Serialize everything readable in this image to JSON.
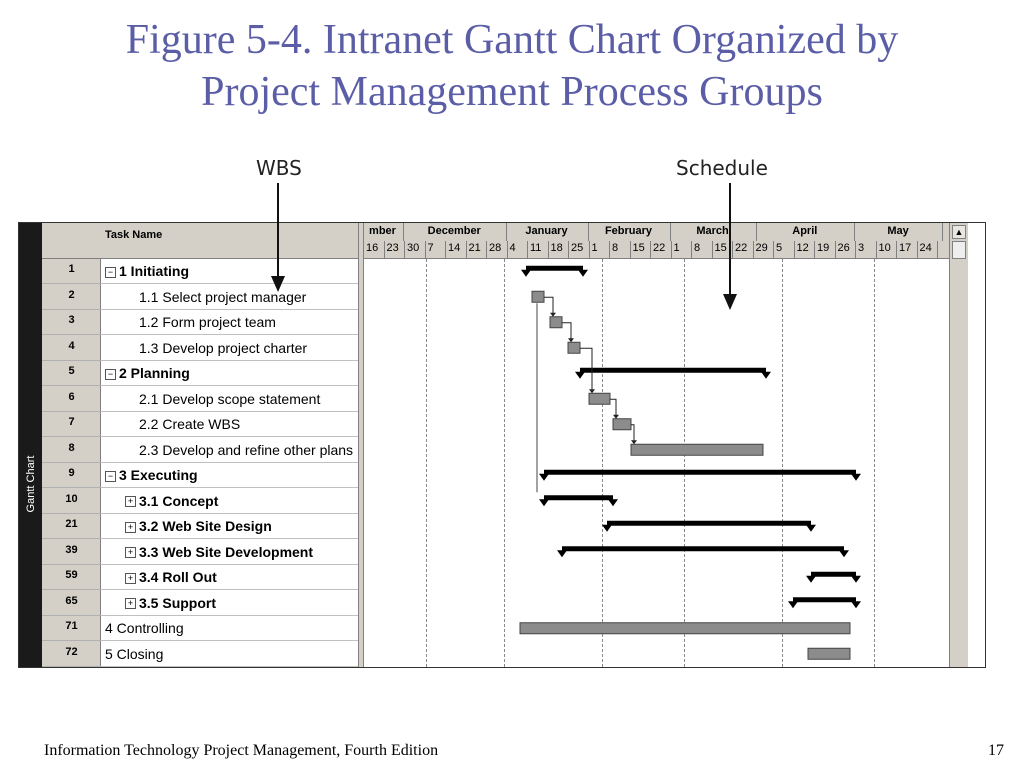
{
  "slide": {
    "title_line1": "Figure 5-4. Intranet Gantt Chart Organized by",
    "title_line2": "Project Management Process Groups",
    "callout_wbs": "WBS",
    "callout_schedule": "Schedule",
    "footer": "Information Technology Project Management, Fourth Edition",
    "page_number": "17",
    "title_color": "#5b5ea6"
  },
  "gantt": {
    "side_label": "Gantt Chart",
    "task_header": "Task Name",
    "months": [
      "mber",
      "December",
      "January",
      "February",
      "March",
      "April",
      "May"
    ],
    "weeks": [
      "16",
      "23",
      "30",
      "7",
      "14",
      "21",
      "28",
      "4",
      "11",
      "18",
      "25",
      "1",
      "8",
      "15",
      "22",
      "1",
      "8",
      "15",
      "22",
      "29",
      "5",
      "12",
      "19",
      "26",
      "3",
      "10",
      "17",
      "24"
    ],
    "tasks": [
      {
        "id": "1",
        "name": "1 Initiating",
        "summary": true,
        "toggle": "−",
        "level": 0
      },
      {
        "id": "2",
        "name": "1.1 Select project manager",
        "summary": false,
        "toggle": "",
        "level": 2
      },
      {
        "id": "3",
        "name": "1.2 Form project team",
        "summary": false,
        "toggle": "",
        "level": 2
      },
      {
        "id": "4",
        "name": "1.3 Develop project charter",
        "summary": false,
        "toggle": "",
        "level": 2
      },
      {
        "id": "5",
        "name": "2 Planning",
        "summary": true,
        "toggle": "−",
        "level": 0
      },
      {
        "id": "6",
        "name": "2.1 Develop scope statement",
        "summary": false,
        "toggle": "",
        "level": 2
      },
      {
        "id": "7",
        "name": "2.2 Create WBS",
        "summary": false,
        "toggle": "",
        "level": 2
      },
      {
        "id": "8",
        "name": "2.3 Develop and refine other plans",
        "summary": false,
        "toggle": "",
        "level": 2
      },
      {
        "id": "9",
        "name": "3 Executing",
        "summary": true,
        "toggle": "−",
        "level": 0
      },
      {
        "id": "10",
        "name": "3.1 Concept",
        "summary": true,
        "toggle": "+",
        "level": 1
      },
      {
        "id": "21",
        "name": "3.2 Web Site Design",
        "summary": true,
        "toggle": "+",
        "level": 1
      },
      {
        "id": "39",
        "name": "3.3 Web Site Development",
        "summary": true,
        "toggle": "+",
        "level": 1
      },
      {
        "id": "59",
        "name": "3.4 Roll Out",
        "summary": true,
        "toggle": "+",
        "level": 1
      },
      {
        "id": "65",
        "name": "3.5 Support",
        "summary": true,
        "toggle": "+",
        "level": 1
      },
      {
        "id": "71",
        "name": "4 Controlling",
        "summary": false,
        "toggle": "",
        "level": 0
      },
      {
        "id": "72",
        "name": "5 Closing",
        "summary": false,
        "toggle": "",
        "level": 0
      }
    ],
    "bars": [
      {
        "row": 0,
        "type": "summary",
        "start": "Jan 6",
        "end": "Jan 25"
      },
      {
        "row": 1,
        "type": "task",
        "start": "Jan 8",
        "end": "Jan 12"
      },
      {
        "row": 2,
        "type": "task",
        "start": "Jan 14",
        "end": "Jan 18"
      },
      {
        "row": 3,
        "type": "task",
        "start": "Jan 20",
        "end": "Jan 24"
      },
      {
        "row": 4,
        "type": "summary",
        "start": "Jan 24",
        "end": "Mar 27"
      },
      {
        "row": 5,
        "type": "task",
        "start": "Jan 27",
        "end": "Feb 3"
      },
      {
        "row": 6,
        "type": "task",
        "start": "Feb 4",
        "end": "Feb 10"
      },
      {
        "row": 7,
        "type": "task",
        "start": "Feb 10",
        "end": "Mar 26"
      },
      {
        "row": 8,
        "type": "summary",
        "start": "Jan 12",
        "end": "Apr 26"
      },
      {
        "row": 9,
        "type": "summary",
        "start": "Jan 12",
        "end": "Feb 4"
      },
      {
        "row": 10,
        "type": "summary",
        "start": "Feb 2",
        "end": "Apr 11"
      },
      {
        "row": 11,
        "type": "summary",
        "start": "Jan 18",
        "end": "Apr 22"
      },
      {
        "row": 12,
        "type": "summary",
        "start": "Apr 11",
        "end": "Apr 26"
      },
      {
        "row": 13,
        "type": "summary",
        "start": "Apr 5",
        "end": "Apr 26"
      },
      {
        "row": 14,
        "type": "task",
        "start": "Jan 4",
        "end": "Apr 24"
      },
      {
        "row": 15,
        "type": "task",
        "start": "Apr 10",
        "end": "Apr 24"
      }
    ]
  }
}
